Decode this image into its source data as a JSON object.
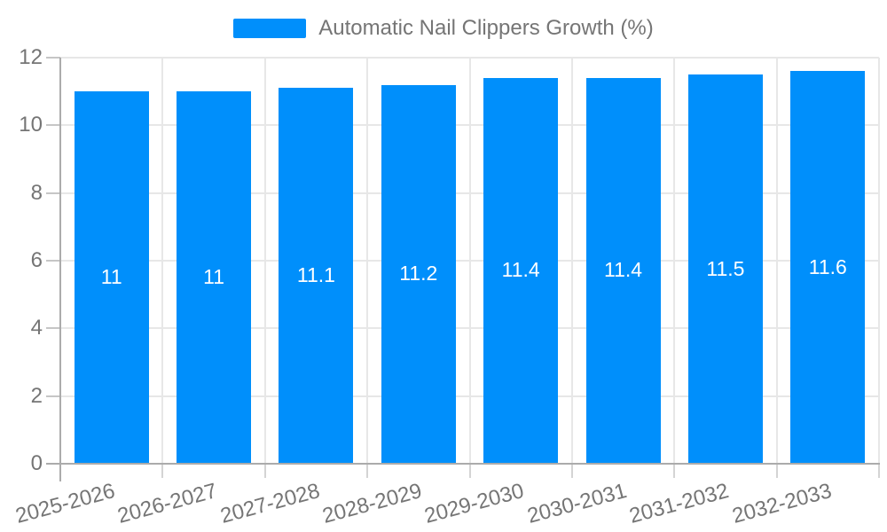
{
  "legend": {
    "label": "Automatic Nail Clippers Growth (%)"
  },
  "chart_data": {
    "type": "bar",
    "title": "Automatic Nail Clippers Growth (%)",
    "xlabel": "",
    "ylabel": "",
    "legend_position": "top",
    "grid": true,
    "categories": [
      "2025-2026",
      "2026-2027",
      "2027-2028",
      "2028-2029",
      "2029-2030",
      "2030-2031",
      "2031-2032",
      "2032-2033"
    ],
    "values": [
      11,
      11,
      11.1,
      11.2,
      11.4,
      11.4,
      11.5,
      11.6
    ],
    "value_labels": [
      "11",
      "11",
      "11.1",
      "11.2",
      "11.4",
      "11.4",
      "11.5",
      "11.6"
    ],
    "ylim": [
      0,
      12
    ],
    "yticks": [
      0,
      2,
      4,
      6,
      8,
      10,
      12
    ],
    "ytick_labels": [
      "0",
      "2",
      "4",
      "6",
      "8",
      "10",
      "12"
    ],
    "colors": {
      "bar": "#008FFB",
      "value_label": "#ffffff",
      "axis_text": "#757575",
      "axis_line": "#ababab",
      "tick_line": "#c6c6c6",
      "boundary_tick_line": "#d4d4d4",
      "grid_line": "#e7e7e7",
      "background": "#ffffff"
    }
  }
}
